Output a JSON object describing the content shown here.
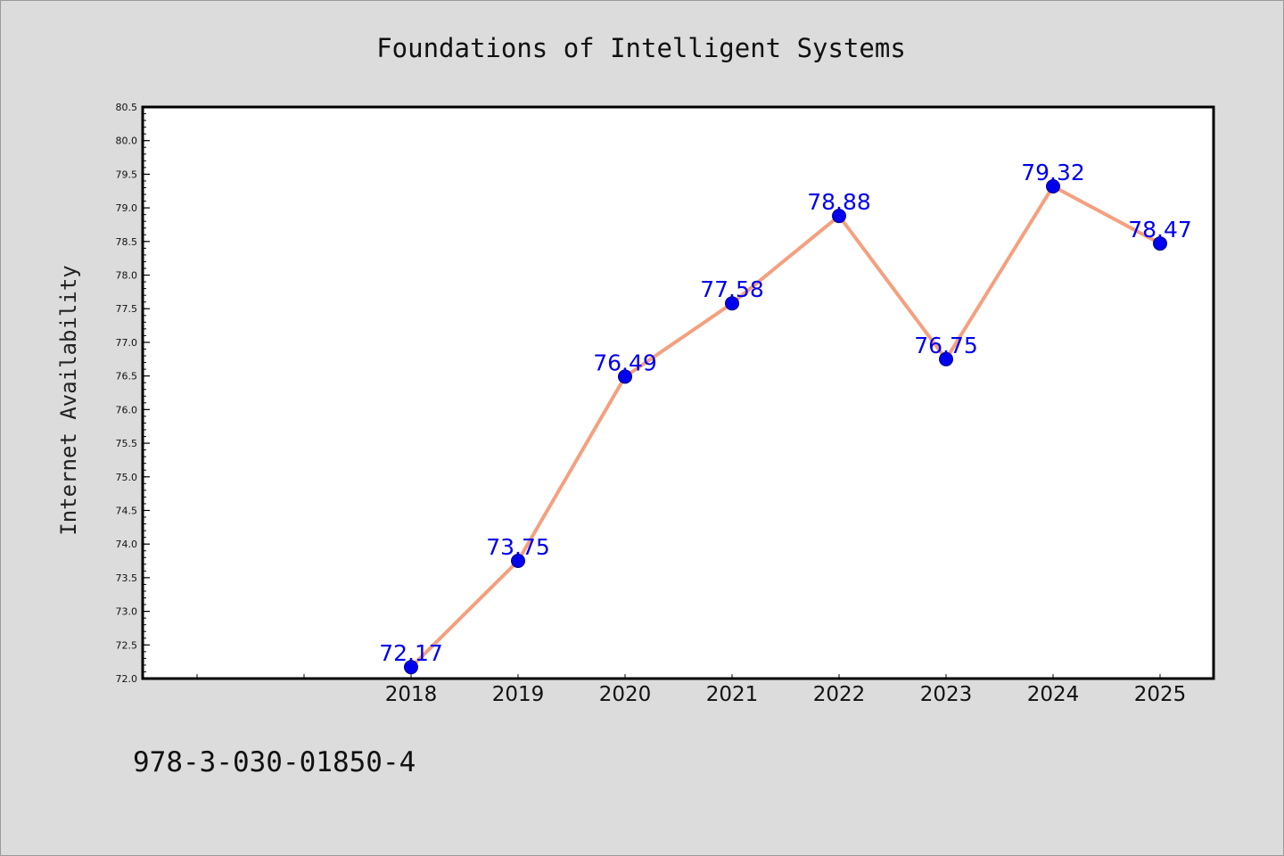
{
  "chart_data": {
    "type": "line",
    "title": "Foundations of Intelligent Systems",
    "xlabel": "",
    "ylabel": "Internet Availability",
    "x": [
      "2018",
      "2019",
      "2020",
      "2021",
      "2022",
      "2023",
      "2024",
      "2025"
    ],
    "series": [
      {
        "values": [
          72.17,
          73.75,
          76.49,
          77.58,
          78.88,
          76.75,
          79.32,
          78.47
        ],
        "labels": [
          "72.17",
          "73.75",
          "76.49",
          "77.58",
          "78.88",
          "76.75",
          "79.32",
          "78.47"
        ]
      }
    ],
    "ylim": [
      72.0,
      80.5
    ],
    "yticks": [
      "72.0",
      "72.5",
      "73.0",
      "73.5",
      "74.0",
      "74.5",
      "75.0",
      "75.5",
      "76.0",
      "76.5",
      "77.0",
      "77.5",
      "78.0",
      "78.5",
      "79.0",
      "79.5",
      "80.0",
      "80.5"
    ],
    "grid": false,
    "legend": "none",
    "colors": {
      "line": "#f4a07f",
      "marker": "#0000ee",
      "data_label": "#0000ee",
      "plot_background": "#ffffff",
      "figure_background": "#dcdcdc"
    }
  },
  "footer": {
    "isbn": "978-3-030-01850-4"
  }
}
